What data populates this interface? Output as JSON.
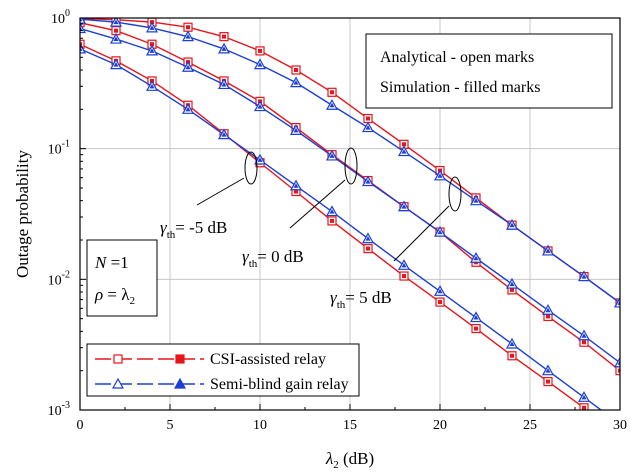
{
  "chart_data": {
    "type": "line",
    "xlabel_main": "λ",
    "xlabel_sub": "2",
    "xlabel_unit": " (dB)",
    "ylabel": "Outage probability",
    "xlim": [
      0,
      30
    ],
    "ylim": [
      0.001,
      1
    ],
    "yscale": "log",
    "grid": true,
    "x_ticks": [
      "0",
      "5",
      "10",
      "15",
      "20",
      "25",
      "30"
    ],
    "y_ticks": [
      {
        "base": "10",
        "exp": "0",
        "value": 1
      },
      {
        "base": "10",
        "exp": "-1",
        "value": 0.1
      },
      {
        "base": "10",
        "exp": "-2",
        "value": 0.01
      },
      {
        "base": "10",
        "exp": "-3",
        "value": 0.001
      }
    ],
    "colors": {
      "csi": "#e8141c",
      "semiblind": "#1a3fd6"
    },
    "series": [
      {
        "name": "CSI-assisted relay",
        "group": "csi",
        "gamma": "-5 dB",
        "x": [
          0,
          2,
          4,
          6,
          8,
          10,
          12,
          14,
          16,
          18,
          20,
          22,
          24,
          26,
          28,
          30
        ],
        "values": [
          0.63,
          0.47,
          0.33,
          0.215,
          0.13,
          0.078,
          0.047,
          0.028,
          0.0172,
          0.0106,
          0.0067,
          0.0042,
          0.0026,
          0.00165,
          0.00104,
          0.00066
        ]
      },
      {
        "name": "Semi-blind gain relay",
        "group": "semiblind",
        "gamma": "-5 dB",
        "x": [
          0,
          2,
          4,
          6,
          8,
          10,
          12,
          14,
          16,
          18,
          20,
          22,
          24,
          26,
          28,
          30
        ],
        "values": [
          0.58,
          0.44,
          0.3,
          0.2,
          0.128,
          0.082,
          0.052,
          0.033,
          0.0205,
          0.0128,
          0.0081,
          0.0051,
          0.0032,
          0.002,
          0.00125,
          0.00078
        ]
      },
      {
        "name": "CSI-assisted relay",
        "group": "csi",
        "gamma": "0 dB",
        "x": [
          0,
          2,
          4,
          6,
          8,
          10,
          12,
          14,
          16,
          18,
          20,
          22,
          24,
          26,
          28,
          30
        ],
        "values": [
          0.92,
          0.8,
          0.63,
          0.46,
          0.33,
          0.23,
          0.145,
          0.09,
          0.057,
          0.036,
          0.023,
          0.0135,
          0.0083,
          0.0052,
          0.0033,
          0.002
        ]
      },
      {
        "name": "Semi-blind gain relay",
        "group": "semiblind",
        "gamma": "0 dB",
        "x": [
          0,
          2,
          4,
          6,
          8,
          10,
          12,
          14,
          16,
          18,
          20,
          22,
          24,
          26,
          28,
          30
        ],
        "values": [
          0.83,
          0.69,
          0.56,
          0.42,
          0.31,
          0.21,
          0.138,
          0.088,
          0.056,
          0.036,
          0.023,
          0.0145,
          0.0092,
          0.0058,
          0.0037,
          0.0023
        ]
      },
      {
        "name": "CSI-assisted relay",
        "group": "csi",
        "gamma": "5 dB",
        "x": [
          0,
          2,
          4,
          6,
          8,
          10,
          12,
          14,
          16,
          18,
          20,
          22,
          24,
          26,
          28,
          30
        ],
        "values": [
          0.99,
          0.97,
          0.93,
          0.85,
          0.72,
          0.56,
          0.4,
          0.27,
          0.17,
          0.108,
          0.068,
          0.042,
          0.026,
          0.0165,
          0.0105,
          0.0066
        ]
      },
      {
        "name": "Semi-blind gain relay",
        "group": "semiblind",
        "gamma": "5 dB",
        "x": [
          0,
          2,
          4,
          6,
          8,
          10,
          12,
          14,
          16,
          18,
          20,
          22,
          24,
          26,
          28,
          30
        ],
        "values": [
          0.98,
          0.93,
          0.84,
          0.72,
          0.58,
          0.44,
          0.32,
          0.215,
          0.145,
          0.095,
          0.062,
          0.04,
          0.026,
          0.0165,
          0.0105,
          0.0066
        ]
      }
    ],
    "legend": [
      {
        "label": "CSI-assisted relay",
        "group": "csi",
        "marker": "square"
      },
      {
        "label": "Semi-blind gain relay",
        "group": "semiblind",
        "marker": "triangle"
      }
    ],
    "info_box": {
      "line1": "Analytical - open marks",
      "line2": "Simulation - filled marks"
    },
    "param_box": {
      "n_label": "N",
      "n_value": " =1",
      "rho_label": "ρ",
      "rho_eq": " = λ",
      "rho_sub": "2"
    },
    "annotations": [
      {
        "symbol": "γ",
        "sub": "th",
        "value": "= -5 dB"
      },
      {
        "symbol": "γ",
        "sub": "th",
        "value": "= 0 dB"
      },
      {
        "symbol": "γ",
        "sub": "th",
        "value": "= 5 dB"
      }
    ]
  }
}
